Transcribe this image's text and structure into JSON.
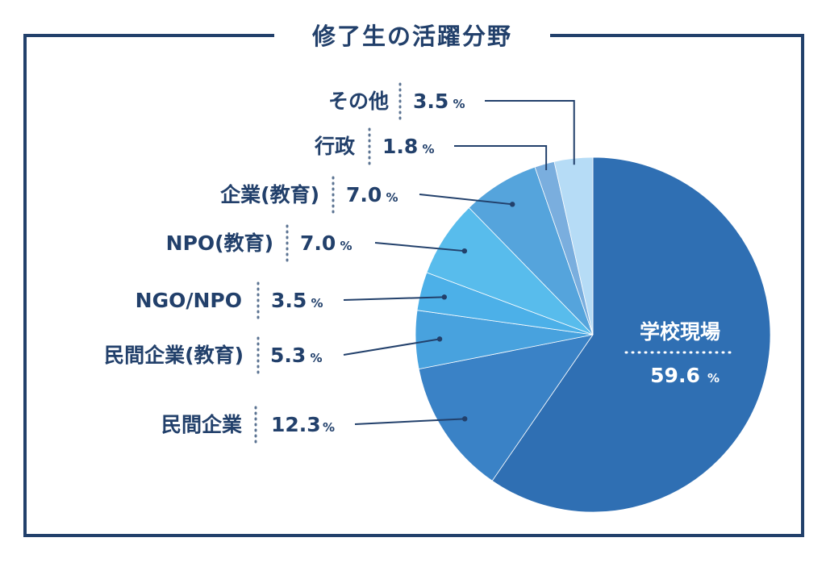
{
  "chart_data": {
    "type": "pie",
    "title": "修了生の活躍分野",
    "unit": "%",
    "colors": {
      "frame": "#22406b",
      "text": "#22406b",
      "dots": "#5b7392"
    },
    "slices": [
      {
        "name": "学校現場",
        "value": 59.6,
        "value_text": "59.6",
        "color": "#2f6fb3"
      },
      {
        "name": "民間企業",
        "value": 12.3,
        "value_text": "12.3",
        "color": "#3a82c6"
      },
      {
        "name": "民間企業(教育)",
        "value": 5.3,
        "value_text": "5.3",
        "color": "#48a2de"
      },
      {
        "name": "NGO/NPO",
        "value": 3.5,
        "value_text": "3.5",
        "color": "#4cb0e8"
      },
      {
        "name": "NPO(教育)",
        "value": 7.0,
        "value_text": "7.0",
        "color": "#58bcec"
      },
      {
        "name": "企業(教育)",
        "value": 7.0,
        "value_text": "7.0",
        "color": "#55a4dc"
      },
      {
        "name": "行政",
        "value": 1.8,
        "value_text": "1.8",
        "color": "#7aaede"
      },
      {
        "name": "その他",
        "value": 3.5,
        "value_text": "3.5",
        "color": "#b6dcf6"
      }
    ]
  }
}
